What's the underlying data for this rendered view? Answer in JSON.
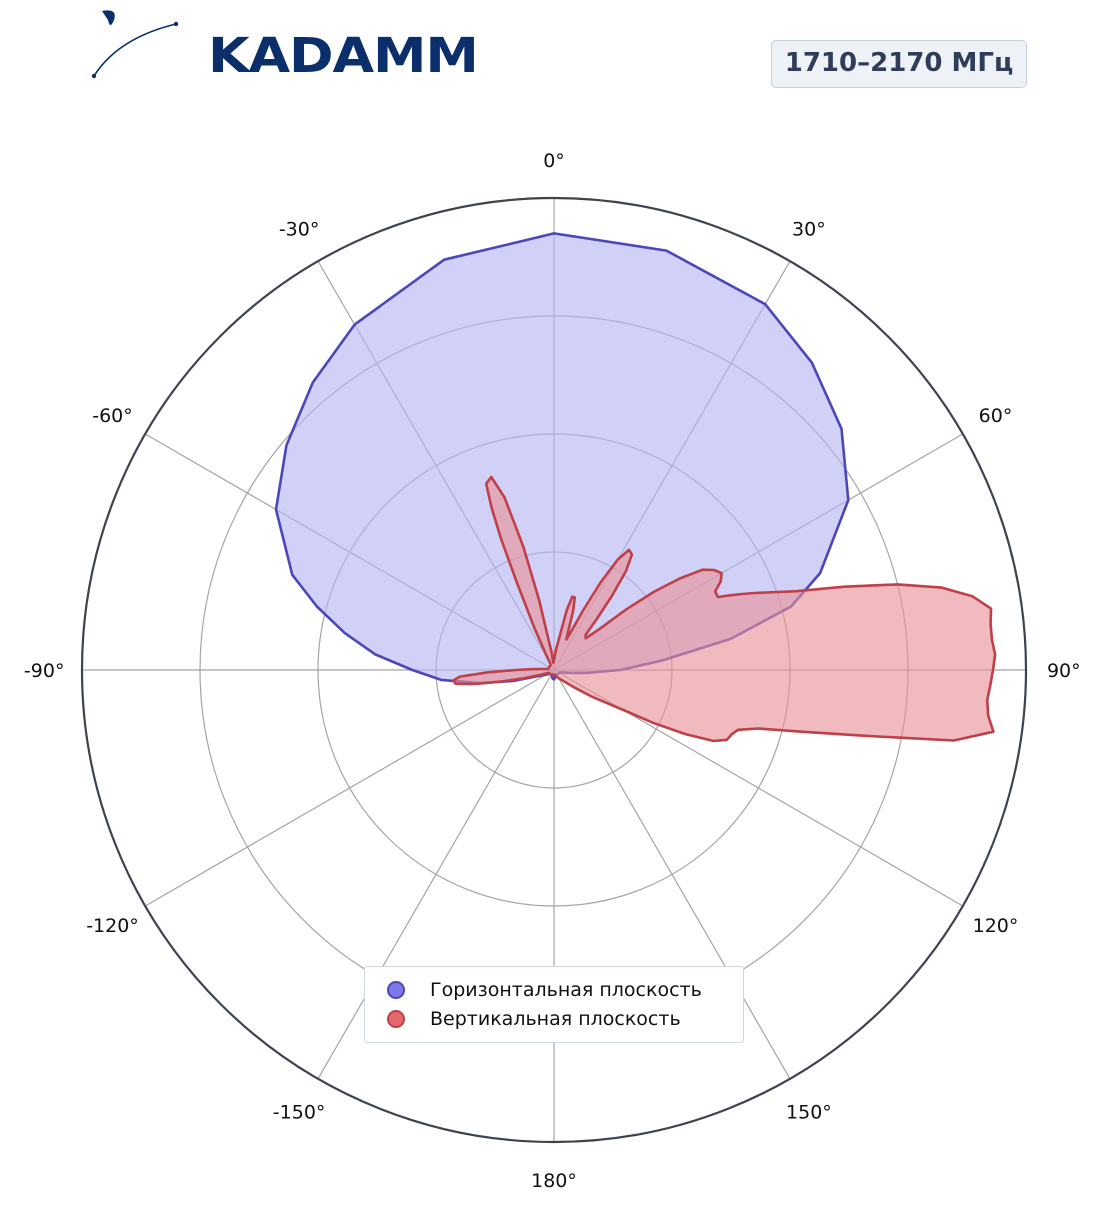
{
  "logo": {
    "text": "KADAMM"
  },
  "badge": {
    "text": "1710–2170 МГц"
  },
  "colors": {
    "horizontal_fill": "#b4b4f4",
    "horizontal_line": "#4c47b8",
    "vertical_fill": "#e98f97",
    "vertical_line": "#bf4048",
    "grid": "#a5a5a5",
    "outer_ring": "#3d4350"
  },
  "chart_data": {
    "type": "polar",
    "angle_labels": [
      "0°",
      "30°",
      "60°",
      "90°",
      "120°",
      "150°",
      "180°",
      "-150°",
      "-120°",
      "-90°",
      "-60°",
      "-30°"
    ],
    "angle_values": [
      0,
      30,
      60,
      90,
      120,
      150,
      180,
      -150,
      -120,
      -90,
      -60,
      -30
    ],
    "radial_range": [
      0,
      1
    ],
    "radial_gridlines": [
      0.25,
      0.5,
      0.75,
      1.0
    ],
    "grid": true,
    "legend_position": "bottom-center",
    "series": [
      {
        "name": "Горизонтальная плоскость",
        "color": "horizontal",
        "angles": [
          0,
          15,
          30,
          40,
          50,
          60,
          70,
          75,
          80,
          85,
          90,
          95,
          100,
          105,
          110,
          120,
          130,
          140,
          150,
          160,
          170,
          180,
          190,
          200,
          210,
          220,
          230,
          240,
          250,
          255,
          260,
          265,
          270,
          275,
          280,
          285,
          290,
          300,
          310,
          320,
          330,
          345,
          360
        ],
        "values": [
          0.925,
          0.92,
          0.895,
          0.85,
          0.795,
          0.72,
          0.6,
          0.52,
          0.38,
          0.23,
          0.14,
          0.07,
          0.035,
          0.02,
          0.015,
          0.012,
          0.012,
          0.012,
          0.012,
          0.012,
          0.015,
          0.02,
          0.018,
          0.012,
          0.012,
          0.012,
          0.012,
          0.02,
          0.04,
          0.09,
          0.16,
          0.24,
          0.3,
          0.38,
          0.45,
          0.52,
          0.59,
          0.68,
          0.74,
          0.795,
          0.845,
          0.9,
          0.925
        ]
      },
      {
        "name": "Вертикальная плоскость",
        "color": "vertical",
        "angles": [
          0,
          5,
          10,
          12,
          14,
          16,
          18,
          20,
          22,
          24,
          26,
          28,
          30,
          32,
          34,
          36,
          38,
          40,
          42,
          45,
          48,
          50,
          52,
          54,
          56,
          58,
          60,
          62,
          64,
          66,
          67,
          68,
          69,
          70,
          72,
          74,
          76,
          78,
          80,
          82,
          84,
          86,
          88,
          90,
          92,
          94,
          96,
          98,
          100,
          102,
          104,
          106,
          108,
          110,
          112,
          114,
          116,
          118,
          120,
          125,
          130,
          135,
          140,
          150,
          160,
          170,
          180,
          190,
          200,
          210,
          220,
          230,
          240,
          250,
          255,
          258,
          260,
          262,
          264,
          266,
          268,
          270,
          272,
          274,
          276,
          278,
          280,
          285,
          290,
          300,
          310,
          320,
          330,
          333,
          335,
          337,
          338,
          339,
          340,
          342,
          344,
          346,
          348,
          350,
          352,
          354,
          356,
          360
        ],
        "values": [
          0.02,
          0.04,
          0.08,
          0.13,
          0.16,
          0.16,
          0.13,
          0.09,
          0.07,
          0.09,
          0.14,
          0.21,
          0.27,
          0.3,
          0.295,
          0.26,
          0.2,
          0.14,
          0.1,
          0.095,
          0.13,
          0.2,
          0.27,
          0.33,
          0.38,
          0.4,
          0.41,
          0.4,
          0.38,
          0.38,
          0.405,
          0.43,
          0.455,
          0.48,
          0.54,
          0.64,
          0.75,
          0.84,
          0.9,
          0.935,
          0.93,
          0.93,
          0.935,
          0.93,
          0.925,
          0.92,
          0.925,
          0.94,
          0.86,
          0.67,
          0.54,
          0.45,
          0.41,
          0.4,
          0.395,
          0.37,
          0.31,
          0.24,
          0.17,
          0.1,
          0.06,
          0.04,
          0.03,
          0.02,
          0.015,
          0.01,
          0.01,
          0.01,
          0.01,
          0.012,
          0.012,
          0.012,
          0.012,
          0.03,
          0.07,
          0.12,
          0.17,
          0.21,
          0.215,
          0.2,
          0.14,
          0.08,
          0.05,
          0.03,
          0.02,
          0.015,
          0.012,
          0.012,
          0.012,
          0.012,
          0.012,
          0.012,
          0.015,
          0.04,
          0.1,
          0.2,
          0.3,
          0.37,
          0.42,
          0.43,
          0.38,
          0.27,
          0.15,
          0.06,
          0.04,
          0.02,
          0.015,
          0.02
        ]
      }
    ]
  },
  "legend": {
    "horizontal_label": "Горизонтальная плоскость",
    "vertical_label": "Вертикальная плоскость"
  }
}
